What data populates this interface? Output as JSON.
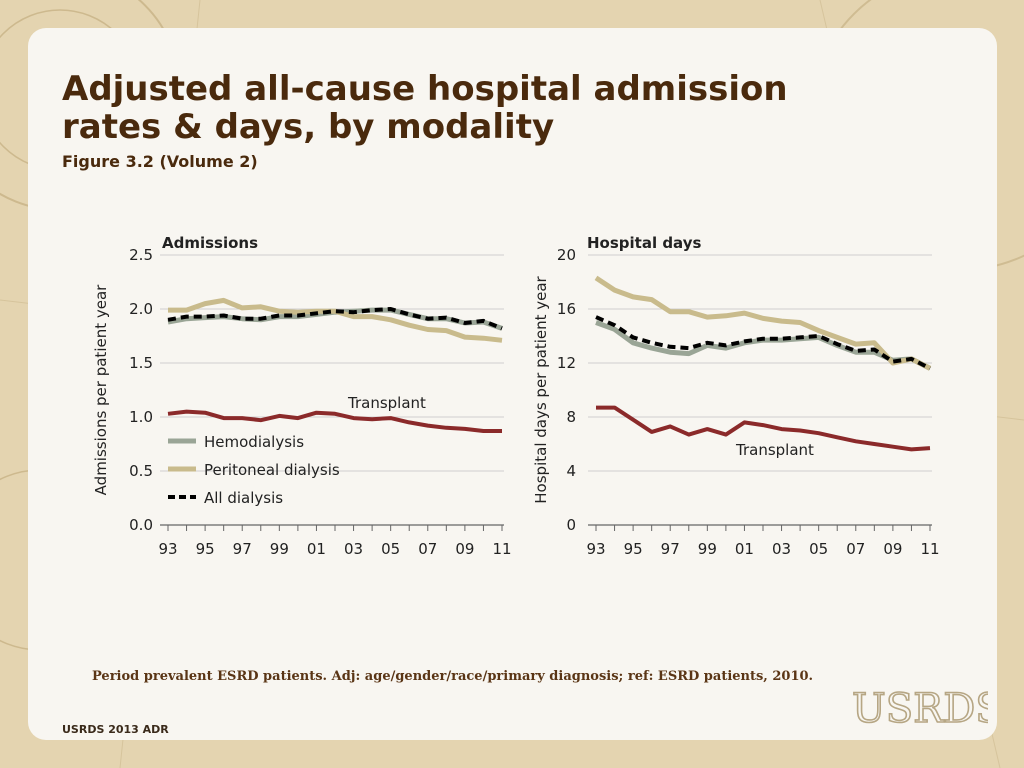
{
  "title": "Adjusted all-cause hospital admission rates & days, by modality",
  "subtitle": "Figure 3.2 (Volume 2)",
  "footnote": "Period prevalent ESRD patients. Adj: age/gender/race/primary diagnosis; ref: ESRD patients, 2010.",
  "footer": "USRDS 2013 ADR",
  "logo_text": "USRDS",
  "colors": {
    "hemodialysis": "#9aa596",
    "peritoneal": "#c9bb8c",
    "all_dialysis": "#000000",
    "transplant": "#8b2a2a",
    "title": "#4a2a0d"
  },
  "chart_data": [
    {
      "type": "line",
      "title": "Admissions",
      "xlabel": "",
      "ylabel": "Admissions per patient year",
      "x": [
        1993,
        1994,
        1995,
        1996,
        1997,
        1998,
        1999,
        2000,
        2001,
        2002,
        2003,
        2004,
        2005,
        2006,
        2007,
        2008,
        2009,
        2010,
        2011
      ],
      "xticks": [
        "93",
        "95",
        "97",
        "99",
        "01",
        "03",
        "05",
        "07",
        "09",
        "11"
      ],
      "yticks": [
        "0.0",
        "0.5",
        "1.0",
        "1.5",
        "2.0",
        "2.5"
      ],
      "ylim": [
        0,
        2.5
      ],
      "grid": true,
      "legend": [
        "Hemodialysis",
        "Peritoneal dialysis",
        "All dialysis"
      ],
      "annotations": [
        "Transplant"
      ],
      "series": [
        {
          "name": "Hemodialysis",
          "values": [
            1.88,
            1.91,
            1.92,
            1.93,
            1.91,
            1.9,
            1.93,
            1.93,
            1.95,
            1.97,
            1.98,
            1.99,
            1.99,
            1.95,
            1.91,
            1.91,
            1.87,
            1.88,
            1.82
          ]
        },
        {
          "name": "Peritoneal dialysis",
          "values": [
            1.99,
            1.99,
            2.05,
            2.08,
            2.01,
            2.02,
            1.98,
            1.97,
            1.98,
            1.98,
            1.93,
            1.93,
            1.9,
            1.85,
            1.81,
            1.8,
            1.74,
            1.73,
            1.71
          ]
        },
        {
          "name": "All dialysis",
          "values": [
            1.9,
            1.93,
            1.93,
            1.94,
            1.91,
            1.91,
            1.94,
            1.94,
            1.96,
            1.98,
            1.97,
            1.99,
            2.0,
            1.95,
            1.91,
            1.92,
            1.87,
            1.89,
            1.82
          ]
        },
        {
          "name": "Transplant",
          "values": [
            1.03,
            1.05,
            1.04,
            0.99,
            0.99,
            0.97,
            1.01,
            0.99,
            1.04,
            1.03,
            0.99,
            0.98,
            0.99,
            0.95,
            0.92,
            0.9,
            0.89,
            0.87,
            0.87
          ]
        }
      ]
    },
    {
      "type": "line",
      "title": "Hospital days",
      "xlabel": "",
      "ylabel": "Hospital days per patient year",
      "x": [
        1993,
        1994,
        1995,
        1996,
        1997,
        1998,
        1999,
        2000,
        2001,
        2002,
        2003,
        2004,
        2005,
        2006,
        2007,
        2008,
        2009,
        2010,
        2011
      ],
      "xticks": [
        "93",
        "95",
        "97",
        "99",
        "01",
        "03",
        "05",
        "07",
        "09",
        "11"
      ],
      "yticks": [
        "0",
        "4",
        "8",
        "12",
        "16",
        "20"
      ],
      "ylim": [
        0,
        20
      ],
      "grid": true,
      "legend": [],
      "annotations": [
        "Transplant"
      ],
      "series": [
        {
          "name": "Hemodialysis",
          "values": [
            15.0,
            14.5,
            13.5,
            13.1,
            12.8,
            12.7,
            13.3,
            13.1,
            13.5,
            13.7,
            13.7,
            13.8,
            13.9,
            13.3,
            12.8,
            12.8,
            12.2,
            12.3,
            11.6
          ]
        },
        {
          "name": "Peritoneal dialysis",
          "values": [
            18.3,
            17.4,
            16.9,
            16.7,
            15.8,
            15.8,
            15.4,
            15.5,
            15.7,
            15.3,
            15.1,
            15.0,
            14.4,
            13.9,
            13.4,
            13.5,
            12.0,
            12.3,
            11.6
          ]
        },
        {
          "name": "All dialysis",
          "values": [
            15.4,
            14.8,
            13.9,
            13.5,
            13.2,
            13.1,
            13.5,
            13.3,
            13.6,
            13.8,
            13.8,
            13.9,
            14.0,
            13.4,
            12.9,
            13.0,
            12.1,
            12.3,
            11.6
          ]
        },
        {
          "name": "Transplant",
          "values": [
            8.7,
            8.7,
            7.8,
            6.9,
            7.3,
            6.7,
            7.1,
            6.7,
            7.6,
            7.4,
            7.1,
            7.0,
            6.8,
            6.5,
            6.2,
            6.0,
            5.8,
            5.6,
            5.7
          ]
        }
      ]
    }
  ]
}
